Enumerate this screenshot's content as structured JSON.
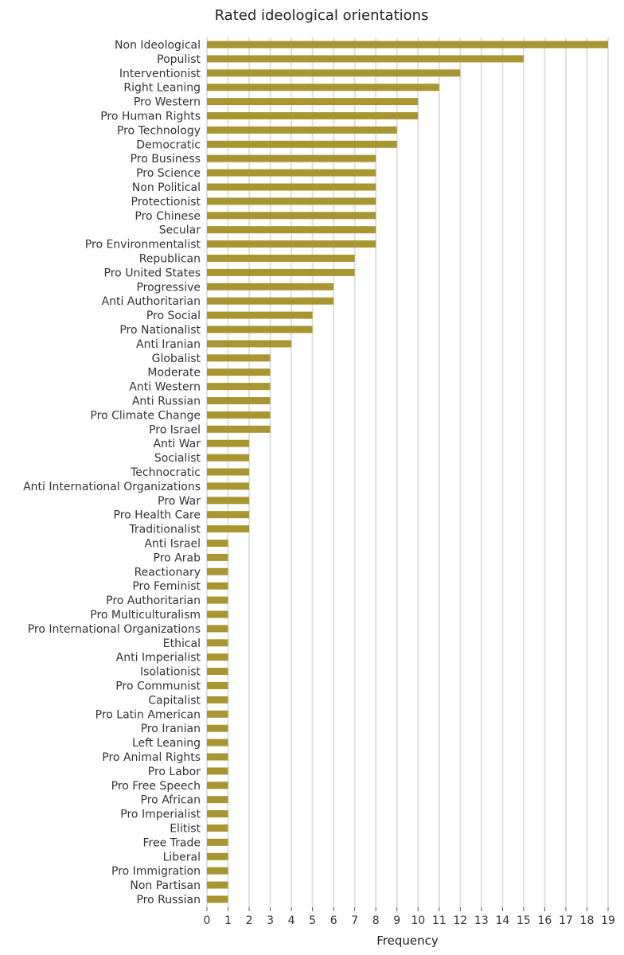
{
  "chart_data": {
    "type": "bar",
    "orientation": "horizontal",
    "title": "Rated ideological orientations",
    "xlabel": "Frequency",
    "ylabel": "",
    "xlim": [
      0,
      19
    ],
    "xticks": [
      0,
      1,
      2,
      3,
      4,
      5,
      6,
      7,
      8,
      9,
      10,
      11,
      12,
      13,
      14,
      15,
      16,
      17,
      18,
      19
    ],
    "grid": "vertical",
    "bar_color": "#a89632",
    "grid_color": "#e0e0e0",
    "categories": [
      "Non Ideological",
      "Populist",
      "Interventionist",
      "Right Leaning",
      "Pro Western",
      "Pro Human Rights",
      "Pro Technology",
      "Democratic",
      "Pro Business",
      "Pro Science",
      "Non Political",
      "Protectionist",
      "Pro Chinese",
      "Secular",
      "Pro Environmentalist",
      "Republican",
      "Pro United States",
      "Progressive",
      "Anti Authoritarian",
      "Pro Social",
      "Pro Nationalist",
      "Anti Iranian",
      "Globalist",
      "Moderate",
      "Anti Western",
      "Anti Russian",
      "Pro Climate Change",
      "Pro Israel",
      "Anti War",
      "Socialist",
      "Technocratic",
      "Anti International Organizations",
      "Pro War",
      "Pro Health Care",
      "Traditionalist",
      "Anti Israel",
      "Pro Arab",
      "Reactionary",
      "Pro Feminist",
      "Pro Authoritarian",
      "Pro Multiculturalism",
      "Pro International Organizations",
      "Ethical",
      "Anti Imperialist",
      "Isolationist",
      "Pro Communist",
      "Capitalist",
      "Pro Latin American",
      "Pro Iranian",
      "Left Leaning",
      "Pro Animal Rights",
      "Pro Labor",
      "Pro Free Speech",
      "Pro African",
      "Pro Imperialist",
      "Elitist",
      "Free Trade",
      "Liberal",
      "Pro Immigration",
      "Non Partisan",
      "Pro Russian"
    ],
    "values": [
      19,
      15,
      12,
      11,
      10,
      10,
      9,
      9,
      8,
      8,
      8,
      8,
      8,
      8,
      8,
      7,
      7,
      6,
      6,
      5,
      5,
      4,
      3,
      3,
      3,
      3,
      3,
      3,
      2,
      2,
      2,
      2,
      2,
      2,
      2,
      1,
      1,
      1,
      1,
      1,
      1,
      1,
      1,
      1,
      1,
      1,
      1,
      1,
      1,
      1,
      1,
      1,
      1,
      1,
      1,
      1,
      1,
      1,
      1,
      1,
      1
    ]
  }
}
